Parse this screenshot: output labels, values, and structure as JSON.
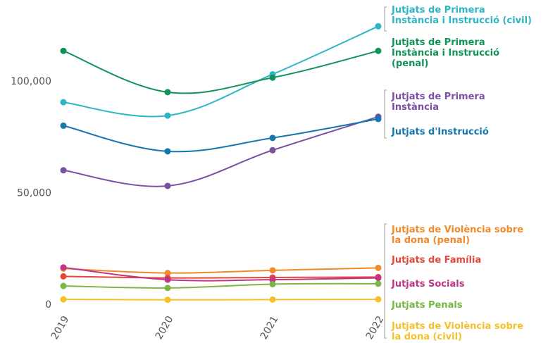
{
  "chart_data": {
    "type": "line",
    "x": [
      "2019",
      "2020",
      "2021",
      "2022"
    ],
    "y_ticks": [
      "0",
      "50,000",
      "100,000"
    ],
    "ylim": [
      0,
      130000
    ],
    "grid": false,
    "legend": "direct labels at right end of lines",
    "series": [
      {
        "name": "Jutjats de Primera Instància i Instrucció (civil)",
        "color": "#2db6c4",
        "values": [
          90500,
          84500,
          103000,
          124500
        ]
      },
      {
        "name": "Jutjats de Primera Instància i Instrucció (penal)",
        "color": "#12935a",
        "values": [
          113500,
          95000,
          101500,
          113500
        ]
      },
      {
        "name": "Jutjats de Primera Instància",
        "color": "#7b4fa3",
        "values": [
          60000,
          53000,
          69000,
          84000
        ]
      },
      {
        "name": "Jutjats d'Instrucció",
        "color": "#1577ad",
        "values": [
          80000,
          68500,
          74500,
          83000
        ]
      },
      {
        "name": "Jutjats de Violència sobre la dona (penal)",
        "color": "#f08a2a",
        "values": [
          16000,
          14000,
          15200,
          16300
        ]
      },
      {
        "name": "Jutjats de Família",
        "color": "#e4483b",
        "values": [
          12500,
          11800,
          12000,
          12200
        ]
      },
      {
        "name": "Jutjats Socials",
        "color": "#c03585",
        "values": [
          16500,
          11000,
          11000,
          11800
        ]
      },
      {
        "name": "Jutjats Penals",
        "color": "#78b843",
        "values": [
          8200,
          7300,
          9000,
          9200
        ]
      },
      {
        "name": "Jutjats de Violència sobre la dona (civil)",
        "color": "#f5c12a",
        "values": [
          2200,
          2000,
          2100,
          2200
        ]
      }
    ],
    "label_groups": [
      {
        "series": [
          0
        ],
        "lines": [
          "Jutjats de Primera",
          "Instància i Instrucció (civil)"
        ]
      },
      {
        "series": [
          1
        ],
        "lines": [
          "Jutjats de Primera",
          "Instància i Instrucció",
          "(penal)"
        ]
      },
      {
        "series": [
          2
        ],
        "lines": [
          "Jutjats de Primera",
          "Instància"
        ]
      },
      {
        "series": [
          3
        ],
        "lines": [
          "Jutjats d'Instrucció"
        ]
      },
      {
        "series": [
          4
        ],
        "lines": [
          "Jutjats de Violència sobre",
          "la dona (penal)"
        ]
      },
      {
        "series": [
          5
        ],
        "lines": [
          "Jutjats de Família"
        ]
      },
      {
        "series": [
          6
        ],
        "lines": [
          "Jutjats Socials"
        ]
      },
      {
        "series": [
          7
        ],
        "lines": [
          "Jutjats Penals"
        ]
      },
      {
        "series": [
          8
        ],
        "lines": [
          "Jutjats de Violència sobre",
          "la dona (civil)"
        ]
      }
    ]
  }
}
